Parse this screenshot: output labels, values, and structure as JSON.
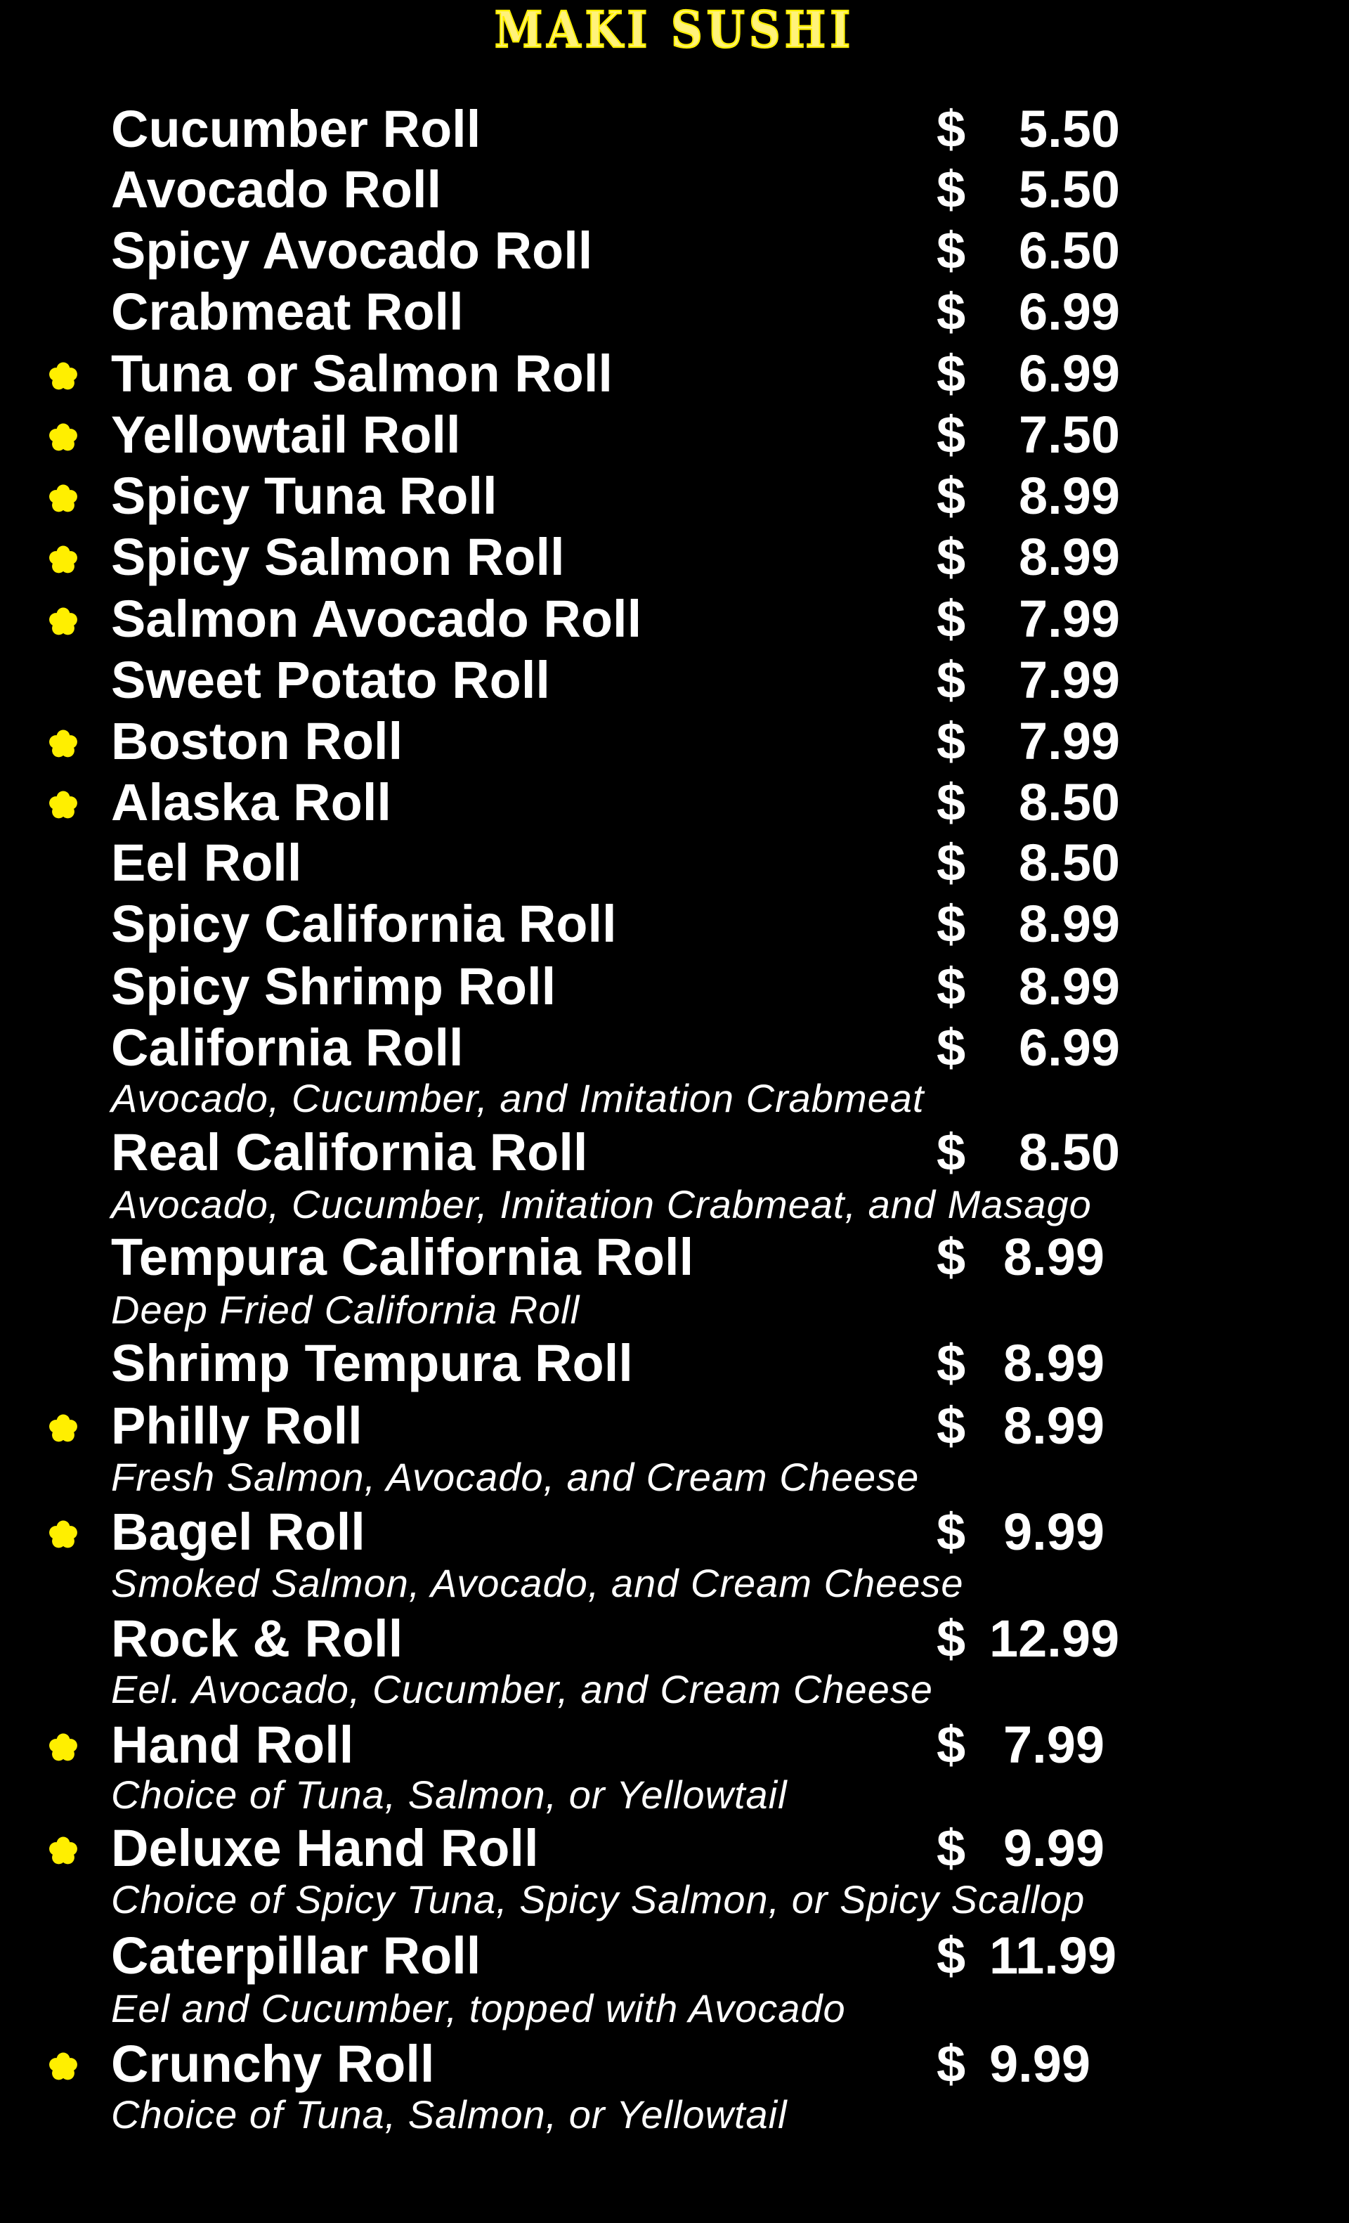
{
  "title": "MAKI SUSHI",
  "colors": {
    "title": "#fff27a",
    "marker": "#ffef00",
    "text": "#ffffff",
    "background": "#000000"
  },
  "marker_icon": "flower-icon",
  "currency": "$",
  "items": [
    {
      "name": "Cucumber Roll",
      "price": "5.50",
      "marked": false
    },
    {
      "name": "Avocado Roll",
      "price": "5.50",
      "marked": false
    },
    {
      "name": "Spicy Avocado Roll",
      "price": "6.50",
      "marked": false
    },
    {
      "name": "Crabmeat Roll",
      "price": "6.99",
      "marked": false
    },
    {
      "name": "Tuna or Salmon Roll",
      "price": "6.99",
      "marked": true
    },
    {
      "name": "Yellowtail Roll",
      "price": "7.50",
      "marked": true
    },
    {
      "name": "Spicy Tuna Roll",
      "price": "8.99",
      "marked": true
    },
    {
      "name": "Spicy Salmon Roll",
      "price": "8.99",
      "marked": true
    },
    {
      "name": "Salmon Avocado Roll",
      "price": "7.99",
      "marked": true
    },
    {
      "name": "Sweet Potato Roll",
      "price": "7.99",
      "marked": false
    },
    {
      "name": "Boston Roll",
      "price": "7.99",
      "marked": true
    },
    {
      "name": "Alaska Roll",
      "price": "8.50",
      "marked": true
    },
    {
      "name": "Eel Roll",
      "price": "8.50",
      "marked": false
    },
    {
      "name": "Spicy California Roll",
      "price": "8.99",
      "marked": false
    },
    {
      "name": "Spicy Shrimp Roll",
      "price": "8.99",
      "marked": false
    },
    {
      "name": "California Roll",
      "price": "6.99",
      "marked": false,
      "description": "Avocado, Cucumber, and Imitation Crabmeat"
    },
    {
      "name": "Real California Roll",
      "price": "8.50",
      "marked": false,
      "description": "Avocado, Cucumber, Imitation Crabmeat, and Masago"
    },
    {
      "name": "Tempura California Roll",
      "price": "8.99",
      "marked": false,
      "description": "Deep Fried California Roll"
    },
    {
      "name": "Shrimp Tempura Roll",
      "price": "8.99",
      "marked": false
    },
    {
      "name": "Philly Roll",
      "price": "8.99",
      "marked": true,
      "description": "Fresh Salmon, Avocado, and Cream Cheese"
    },
    {
      "name": "Bagel Roll",
      "price": "9.99",
      "marked": true,
      "description": "Smoked Salmon, Avocado, and Cream Cheese"
    },
    {
      "name": "Rock & Roll",
      "price": "12.99",
      "marked": false,
      "description": "Eel. Avocado, Cucumber, and Cream Cheese"
    },
    {
      "name": "Hand Roll",
      "price": "7.99",
      "marked": true,
      "description": "Choice of Tuna, Salmon, or Yellowtail"
    },
    {
      "name": "Deluxe Hand Roll",
      "price": "9.99",
      "marked": true,
      "description": "Choice of Spicy Tuna, Spicy Salmon, or Spicy Scallop"
    },
    {
      "name": "Caterpillar Roll",
      "price": "11.99",
      "marked": false,
      "description": "Eel and Cucumber, topped with Avocado"
    },
    {
      "name": "Crunchy Roll",
      "price": "9.99",
      "marked": true,
      "description": "Choice of Tuna, Salmon, or Yellowtail"
    }
  ]
}
